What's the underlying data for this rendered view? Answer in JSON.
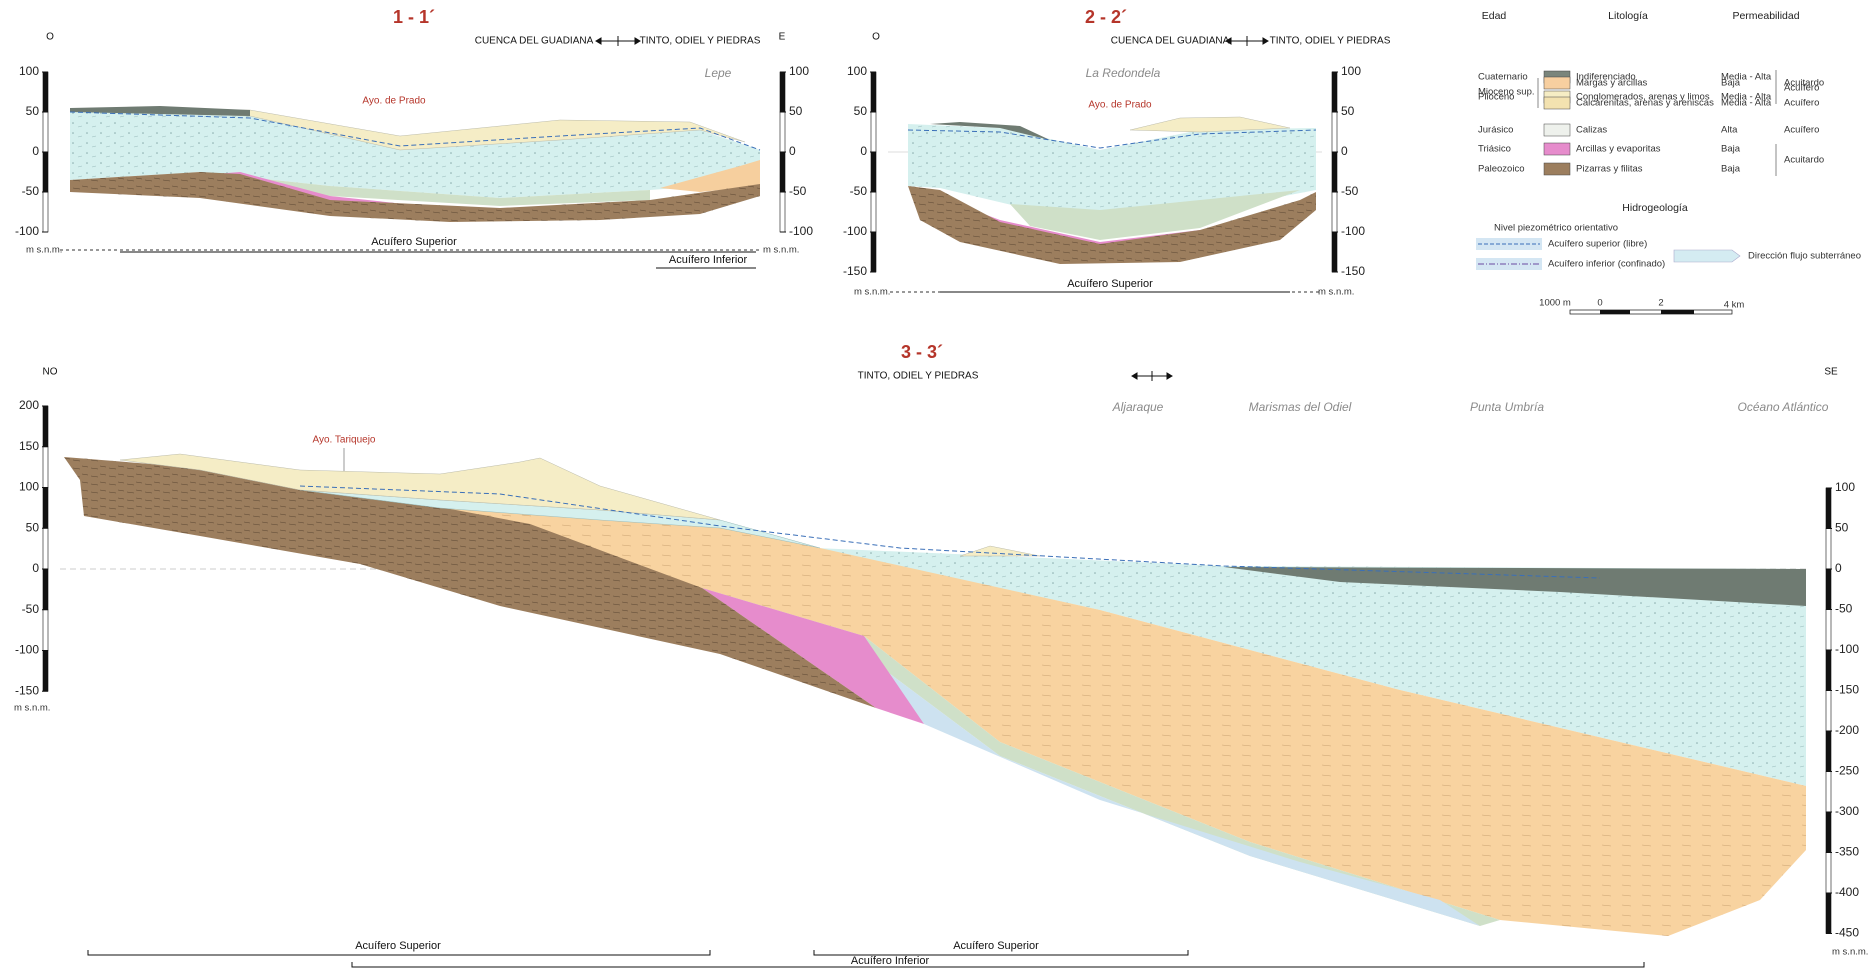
{
  "sections": [
    {
      "title": "1 - 1´",
      "west": "O",
      "east": "E",
      "from": "CUENCA DEL GUADIANA",
      "to": "TINTO, ODIEL Y PIEDRAS",
      "places": [
        "Lepe"
      ],
      "streams": [
        "Ayo. de Prado"
      ],
      "left_ticks": [
        100,
        50,
        0,
        -50,
        -100
      ],
      "right_ticks": [
        100,
        50,
        0,
        -50,
        -100
      ],
      "datum_left": "m s.n.m.",
      "datum_right": "m s.n.m.",
      "aquifers": [
        "Acuífero Superior",
        "Acuífero Inferior"
      ]
    },
    {
      "title": "2 - 2´",
      "west": "O",
      "from": "CUENCA DEL GUADIANA",
      "to": "TINTO, ODIEL Y PIEDRAS",
      "places": [
        "La Redondela"
      ],
      "streams": [
        "Ayo. de Prado"
      ],
      "left_ticks": [
        100,
        50,
        0,
        -50,
        -100,
        -150
      ],
      "right_ticks": [
        100,
        50,
        0,
        -50,
        -100,
        -150
      ],
      "datum_left": "m s.n.m.",
      "datum_right": "m s.n.m.",
      "aquifers": [
        "Acuífero Superior"
      ]
    },
    {
      "title": "3 - 3´",
      "west": "NO",
      "east": "SE",
      "to": "TINTO, ODIEL Y PIEDRAS",
      "places": [
        "Aljaraque",
        "Marismas del Odiel",
        "Punta Umbría",
        "Océano Atlántico"
      ],
      "streams": [
        "Ayo. Tariquejo"
      ],
      "left_ticks": [
        200,
        150,
        100,
        50,
        0,
        -50,
        -100,
        -150
      ],
      "right_ticks": [
        100,
        50,
        0,
        -50,
        -100,
        -150,
        -200,
        -250,
        -300,
        -350,
        -400,
        -450
      ],
      "datum_left": "m s.n.m.",
      "datum_right": "m s.n.m.",
      "aquifers": [
        "Acuífero Superior",
        "Acuífero Superior",
        "Acuífero Inferior"
      ]
    }
  ],
  "legend": {
    "headers": [
      "Edad",
      "Litología",
      "Permeabilidad"
    ],
    "units": [
      {
        "age": "Cuaternario",
        "lithology": "Indiferenciado",
        "permeability": "Media - Alta"
      },
      {
        "age": "Plioceno",
        "lithology": "Conglomerados, arenas y limos",
        "permeability": "Media - Alta"
      },
      {
        "age": "Mioceno sup.",
        "lithology": "Margas y arcillas",
        "permeability": "Baja"
      },
      {
        "lithology": "Calcarenitas, arenas y areniscas",
        "permeability": "Media - Alta"
      },
      {
        "age": "Jurásico",
        "lithology": "Calizas",
        "permeability": "Alta"
      },
      {
        "age": "Triásico",
        "lithology": "Arcillas y evaporitas",
        "permeability": "Baja"
      },
      {
        "age": "Paleozoico",
        "lithology": "Pizarras y filitas",
        "permeability": "Baja"
      }
    ],
    "behaviour": [
      "Acuífero",
      "Acuitardo",
      "Acuífero",
      "Acuífero",
      "Acuitardo"
    ],
    "hydro_title": "Hidrogeología",
    "piezo_title": "Nivel piezométrico orientativo",
    "piezo": [
      "Acuífero superior (libre)",
      "Acuífero inferior (confinado)"
    ],
    "flow": "Dirección flujo subterráneo",
    "scale": [
      "1000 m",
      "0",
      "2",
      "4 km"
    ]
  }
}
